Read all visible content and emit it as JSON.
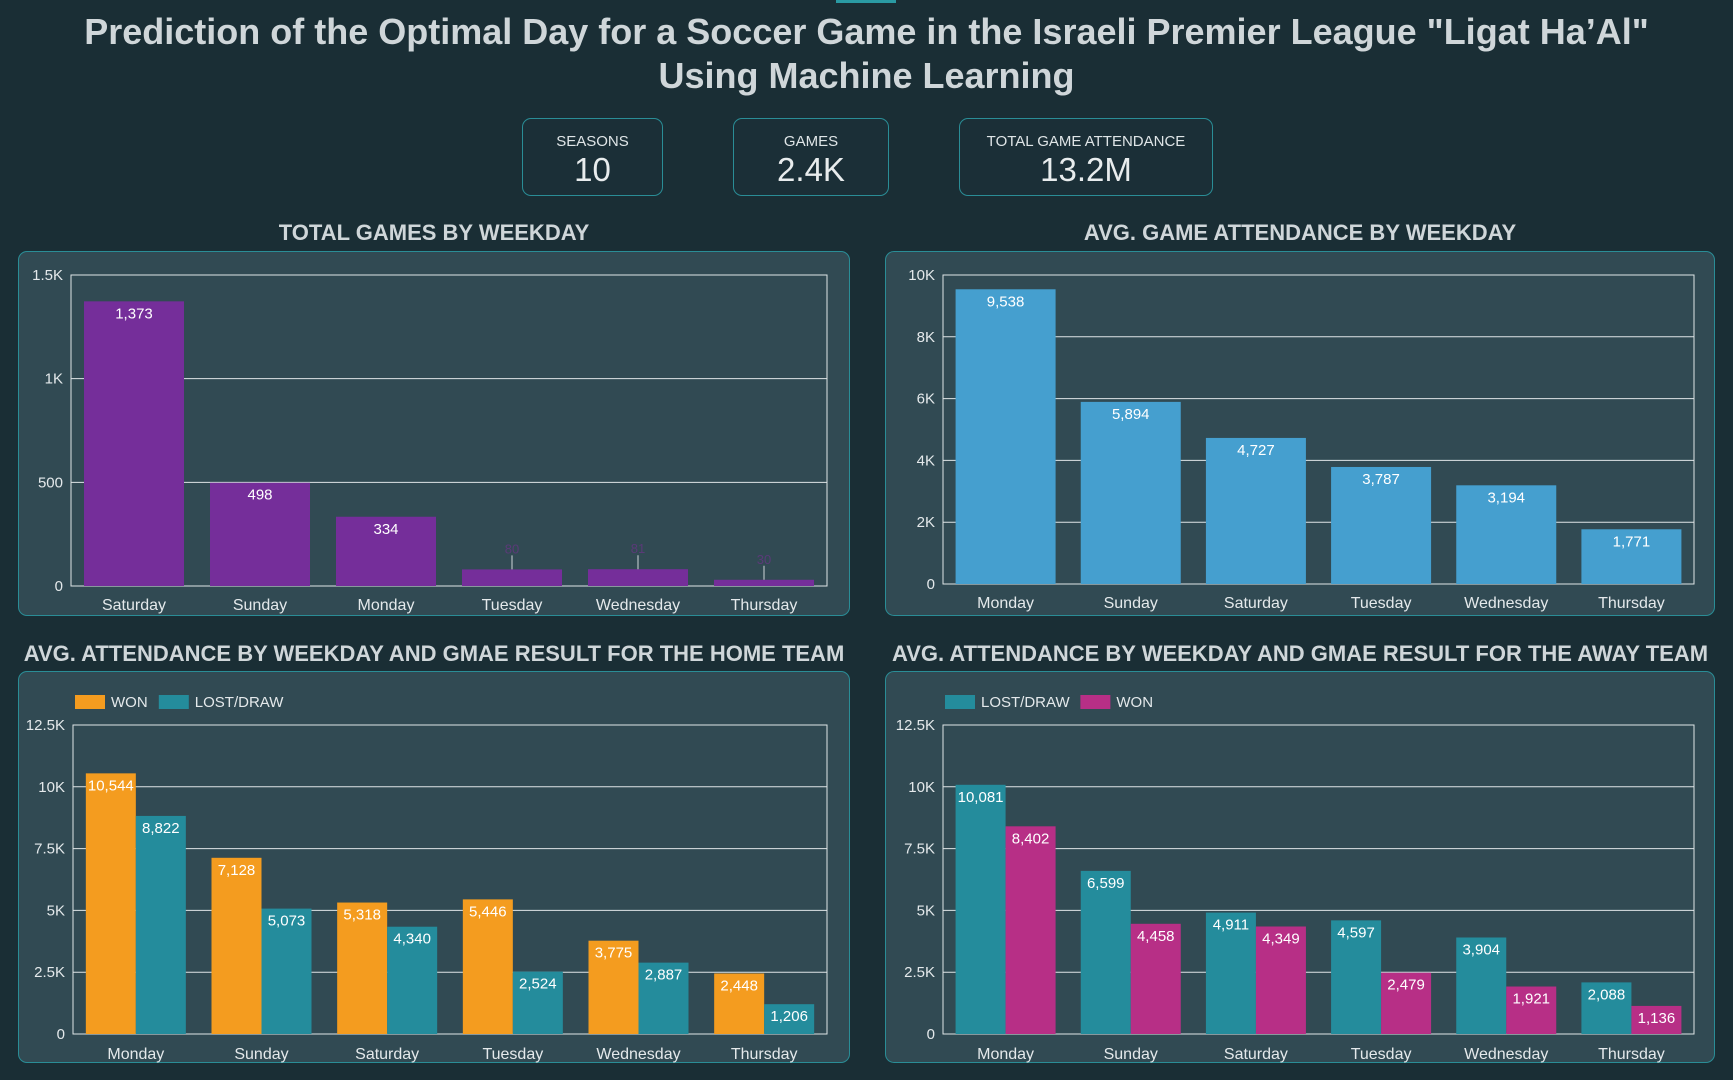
{
  "title_line1": "Prediction of the Optimal Day for a Soccer Game in the Israeli Premier League \"Ligat Ha’Al\"",
  "title_line2": "Using Machine Learning",
  "kpis": [
    {
      "label": "SEASONS",
      "value": "10"
    },
    {
      "label": "GAMES",
      "value": "2.4K"
    },
    {
      "label": "TOTAL GAME ATTENDANCE",
      "value": "13.2M"
    }
  ],
  "colors": {
    "purple": "#752e9a",
    "blue": "#459fcf",
    "orange": "#f49c1f",
    "teal": "#248c9c",
    "magenta": "#b72f86"
  },
  "chart_data": [
    {
      "id": "games",
      "type": "bar",
      "title": "TOTAL GAMES BY WEEKDAY",
      "categories": [
        "Saturday",
        "Sunday",
        "Monday",
        "Tuesday",
        "Wednesday",
        "Thursday"
      ],
      "series": [
        {
          "name": "Games",
          "values": [
            1373,
            498,
            334,
            80,
            81,
            30
          ],
          "labels": [
            "1,373",
            "498",
            "334",
            "80",
            "81",
            "30"
          ],
          "color": "#752e9a"
        }
      ],
      "ylim": [
        0,
        1500
      ],
      "yticks": [
        0,
        500,
        1000,
        1500
      ],
      "ytick_labels": [
        "0",
        "500",
        "1K",
        "1.5K"
      ],
      "legend": false
    },
    {
      "id": "avgatt",
      "type": "bar",
      "title": "AVG. GAME ATTENDANCE BY WEEKDAY",
      "categories": [
        "Monday",
        "Sunday",
        "Saturday",
        "Tuesday",
        "Wednesday",
        "Thursday"
      ],
      "series": [
        {
          "name": "Avg. Attendance",
          "values": [
            9538,
            5894,
            4727,
            3787,
            3194,
            1771
          ],
          "labels": [
            "9,538",
            "5,894",
            "4,727",
            "3,787",
            "3,194",
            "1,771"
          ],
          "color": "#459fcf"
        }
      ],
      "ylim": [
        0,
        10000
      ],
      "yticks": [
        0,
        2000,
        4000,
        6000,
        8000,
        10000
      ],
      "ytick_labels": [
        "0",
        "2K",
        "4K",
        "6K",
        "8K",
        "10K"
      ],
      "legend": false
    },
    {
      "id": "home",
      "type": "bar",
      "title": "AVG. ATTENDANCE BY WEEKDAY AND GMAE RESULT FOR THE HOME TEAM",
      "categories": [
        "Monday",
        "Sunday",
        "Saturday",
        "Tuesday",
        "Wednesday",
        "Thursday"
      ],
      "series": [
        {
          "name": "WON",
          "values": [
            10544,
            7128,
            5318,
            5446,
            3775,
            2448
          ],
          "labels": [
            "10,544",
            "7,128",
            "5,318",
            "5,446",
            "3,775",
            "2,448"
          ],
          "color": "#f49c1f"
        },
        {
          "name": "LOST/DRAW",
          "values": [
            8822,
            5073,
            4340,
            2524,
            2887,
            1206
          ],
          "labels": [
            "8,822",
            "5,073",
            "4,340",
            "2,524",
            "2,887",
            "1,206"
          ],
          "color": "#248c9c"
        }
      ],
      "ylim": [
        0,
        12500
      ],
      "yticks": [
        0,
        2500,
        5000,
        7500,
        10000,
        12500
      ],
      "ytick_labels": [
        "0",
        "2.5K",
        "5K",
        "7.5K",
        "10K",
        "12.5K"
      ],
      "legend": "top-left"
    },
    {
      "id": "away",
      "type": "bar",
      "title": "AVG. ATTENDANCE BY WEEKDAY AND GMAE RESULT FOR THE AWAY TEAM",
      "categories": [
        "Monday",
        "Sunday",
        "Saturday",
        "Tuesday",
        "Wednesday",
        "Thursday"
      ],
      "series": [
        {
          "name": "LOST/DRAW",
          "values": [
            10081,
            6599,
            4911,
            4597,
            3904,
            2088
          ],
          "labels": [
            "10,081",
            "6,599",
            "4,911",
            "4,597",
            "3,904",
            "2,088"
          ],
          "color": "#248c9c"
        },
        {
          "name": "WON",
          "values": [
            8402,
            4458,
            4349,
            2479,
            1921,
            1136
          ],
          "labels": [
            "8,402",
            "4,458",
            "4,349",
            "2,479",
            "1,921",
            "1,136"
          ],
          "color": "#b72f86"
        }
      ],
      "ylim": [
        0,
        12500
      ],
      "yticks": [
        0,
        2500,
        5000,
        7500,
        10000,
        12500
      ],
      "ytick_labels": [
        "0",
        "2.5K",
        "5K",
        "7.5K",
        "10K",
        "12.5K"
      ],
      "legend": "top-left"
    }
  ]
}
